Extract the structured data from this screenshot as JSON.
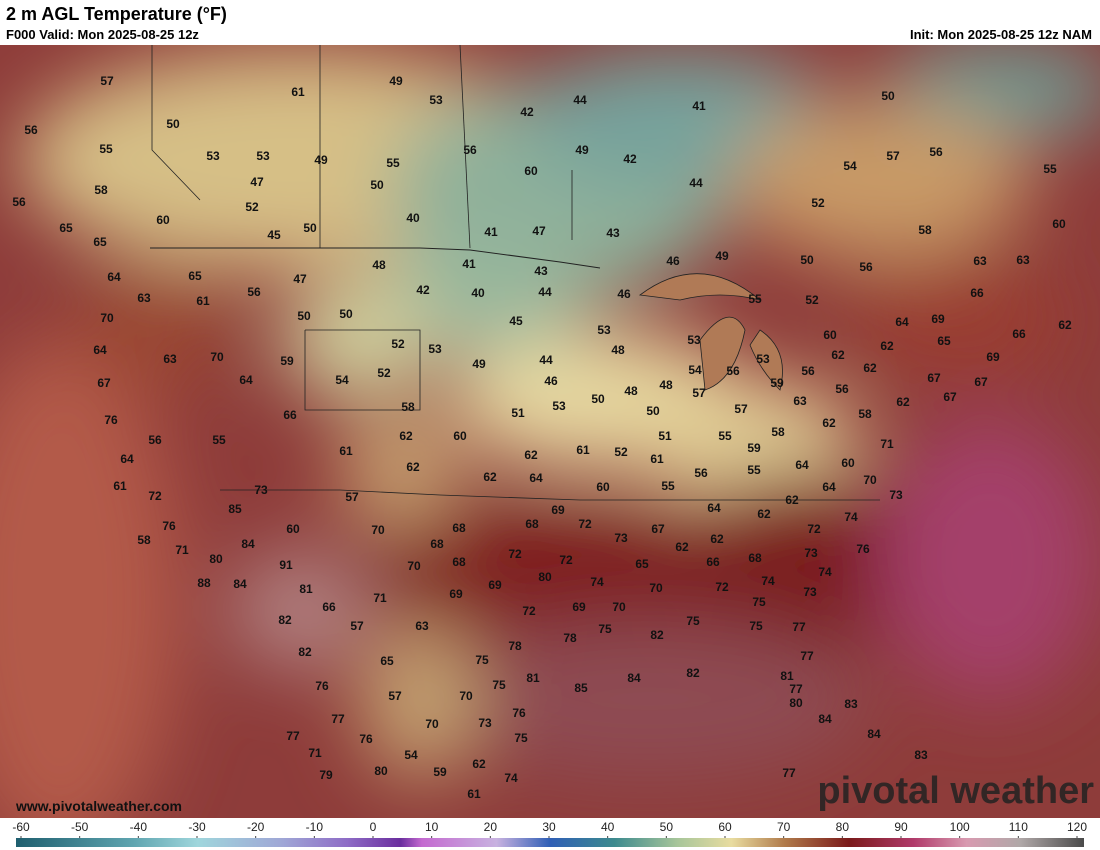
{
  "header": {
    "title": "2 m AGL Temperature (°F)",
    "valid": "F000 Valid: Mon 2025-08-25 12z",
    "init": "Init: Mon 2025-08-25 12z NAM"
  },
  "watermark": {
    "url": "www.pivotalweather.com",
    "brand": "pivotal weather"
  },
  "map": {
    "stations": [
      57,
      49,
      61,
      53,
      44,
      41,
      42,
      50,
      50,
      56,
      55,
      53,
      53,
      49,
      55,
      56,
      49,
      42,
      57,
      56,
      55,
      54,
      60,
      58,
      47,
      50,
      44,
      56,
      52,
      52,
      60,
      40,
      41,
      47,
      43,
      58,
      60,
      65,
      45,
      50,
      65,
      49,
      50,
      46,
      56,
      63,
      63,
      41,
      48,
      43,
      64,
      65,
      47,
      56,
      42,
      40,
      44,
      46,
      66,
      55,
      52,
      63,
      61,
      50,
      50,
      45,
      70,
      64,
      69,
      62,
      53,
      66,
      60,
      53,
      52,
      53,
      48,
      65,
      62,
      64,
      63,
      70,
      59,
      44,
      62,
      53,
      69,
      49,
      52,
      54,
      64,
      67,
      54,
      56,
      62,
      56,
      46,
      59,
      67,
      67,
      48,
      48,
      57,
      56,
      50,
      63,
      58,
      51,
      53,
      67,
      57,
      58,
      62,
      76,
      66,
      50,
      56,
      55,
      62,
      60,
      62,
      51,
      55,
      58,
      71,
      61,
      52,
      61,
      59,
      64,
      62,
      62,
      61,
      60,
      56,
      55,
      64,
      62,
      64,
      61,
      70,
      55,
      64,
      60,
      73,
      57,
      72,
      73,
      62,
      85,
      69,
      64,
      62,
      74,
      60,
      70,
      68,
      68,
      72,
      76,
      73,
      67,
      72,
      58,
      84,
      68,
      62,
      62,
      68,
      73,
      76,
      71,
      80,
      72,
      72,
      91,
      70,
      68,
      65,
      66,
      74,
      80,
      69,
      74,
      70,
      72,
      74,
      88,
      84,
      81,
      69,
      73,
      71,
      75,
      66,
      72,
      69,
      70,
      82,
      57,
      63,
      75,
      75,
      75,
      77,
      78,
      82,
      78,
      82,
      65,
      75,
      77,
      85,
      84,
      82,
      81,
      76,
      57,
      75,
      81,
      70,
      77,
      80,
      83,
      77,
      76,
      84,
      70,
      73,
      77,
      76,
      75,
      84,
      71,
      54,
      83,
      62,
      59,
      80,
      74,
      79,
      77,
      61
    ]
  },
  "colorbar": {
    "ticks": [
      -60,
      -50,
      -40,
      -30,
      -20,
      -10,
      0,
      10,
      20,
      30,
      40,
      50,
      60,
      70,
      80,
      90,
      100,
      110,
      120
    ]
  }
}
